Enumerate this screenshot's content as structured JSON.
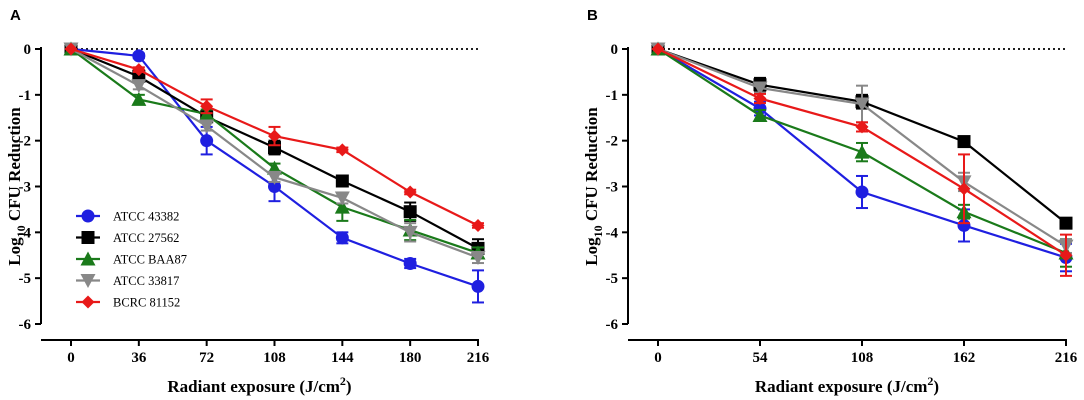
{
  "chart_data": [
    {
      "type": "line",
      "panel_label": "A",
      "xlabel_main": "Radiant exposure (J/cm",
      "xlabel_sup": "2",
      "xlabel_end": ")",
      "ylabel_pre": "Log",
      "ylabel_sub": "10",
      "ylabel_post": " CFU Reduction",
      "x": [
        0,
        36,
        72,
        108,
        144,
        180,
        216
      ],
      "xlim": [
        0,
        216
      ],
      "ylim": [
        -6,
        0
      ],
      "yticks": [
        0,
        -1,
        -2,
        -3,
        -4,
        -5,
        -6
      ],
      "ytick_labels": [
        "0",
        "-1",
        "-2",
        "-3",
        "-4",
        "-5",
        "-6"
      ],
      "xtick_labels": [
        "0",
        "36",
        "72",
        "108",
        "144",
        "180",
        "216"
      ],
      "reference_line": 0,
      "legend_position": "bottom-left",
      "series": [
        {
          "name": "ATCC 43382",
          "color": "#1f1fe0",
          "marker": "circle",
          "values": [
            0,
            -0.15,
            -2.0,
            -3.0,
            -4.12,
            -4.68,
            -5.18
          ],
          "errors": [
            0,
            0.05,
            0.3,
            0.32,
            0.12,
            0.1,
            0.35
          ]
        },
        {
          "name": "ATCC 27562",
          "color": "#000000",
          "marker": "square",
          "values": [
            0,
            -0.6,
            -1.48,
            -2.15,
            -2.88,
            -3.55,
            -4.35
          ],
          "errors": [
            0,
            0.08,
            0.1,
            0.15,
            0.05,
            0.2,
            0.2
          ]
        },
        {
          "name": "ATCC BAA87",
          "color": "#1a7a1a",
          "marker": "triangle-up",
          "values": [
            0,
            -1.1,
            -1.42,
            -2.6,
            -3.45,
            -3.95,
            -4.45
          ],
          "errors": [
            0,
            0.1,
            0.1,
            0.1,
            0.3,
            0.22,
            0.12
          ]
        },
        {
          "name": "ATCC 33817",
          "color": "#888888",
          "marker": "triangle-down",
          "values": [
            0,
            -0.8,
            -1.68,
            -2.8,
            -3.25,
            -4.0,
            -4.55
          ],
          "errors": [
            0,
            0.08,
            0.1,
            0.1,
            0.12,
            0.2,
            0.12
          ]
        },
        {
          "name": "BCRC 81152",
          "color": "#e81919",
          "marker": "diamond",
          "values": [
            0,
            -0.45,
            -1.25,
            -1.9,
            -2.2,
            -3.12,
            -3.85
          ],
          "errors": [
            0,
            0.05,
            0.15,
            0.2,
            0.05,
            0.05,
            0.05
          ]
        }
      ]
    },
    {
      "type": "line",
      "panel_label": "B",
      "xlabel_main": "Radiant exposure (J/cm",
      "xlabel_sup": "2",
      "xlabel_end": ")",
      "ylabel_pre": "Log",
      "ylabel_sub": "10",
      "ylabel_post": " CFU Reduction",
      "x": [
        0,
        54,
        108,
        162,
        216
      ],
      "xlim": [
        0,
        216
      ],
      "ylim": [
        -6,
        0
      ],
      "yticks": [
        0,
        -1,
        -2,
        -3,
        -4,
        -5,
        -6
      ],
      "ytick_labels": [
        "0",
        "-1",
        "-2",
        "-3",
        "-4",
        "-5",
        "-6"
      ],
      "xtick_labels": [
        "0",
        "54",
        "108",
        "162",
        "216"
      ],
      "reference_line": 0,
      "series": [
        {
          "name": "ATCC 43382",
          "color": "#1f1fe0",
          "marker": "circle",
          "values": [
            0,
            -1.3,
            -3.12,
            -3.85,
            -4.55
          ],
          "errors": [
            0,
            0.15,
            0.35,
            0.35,
            0.3
          ]
        },
        {
          "name": "ATCC 27562",
          "color": "#000000",
          "marker": "square",
          "values": [
            0,
            -0.78,
            -1.15,
            -2.02,
            -3.8
          ],
          "errors": [
            0,
            0.15,
            0.15,
            0.05,
            0.05
          ]
        },
        {
          "name": "ATCC BAA87",
          "color": "#1a7a1a",
          "marker": "triangle-up",
          "values": [
            0,
            -1.45,
            -2.25,
            -3.55,
            -4.45
          ],
          "errors": [
            0,
            0.12,
            0.2,
            0.15,
            0.3
          ]
        },
        {
          "name": "ATCC 33817",
          "color": "#888888",
          "marker": "triangle-down",
          "values": [
            0,
            -0.85,
            -1.2,
            -2.9,
            -4.3
          ],
          "errors": [
            0,
            0.1,
            0.4,
            0.2,
            0.15
          ]
        },
        {
          "name": "BCRC 81152",
          "color": "#e81919",
          "marker": "diamond",
          "values": [
            0,
            -1.08,
            -1.7,
            -3.05,
            -4.5
          ],
          "errors": [
            0,
            0.1,
            0.1,
            0.75,
            0.45
          ]
        }
      ]
    }
  ]
}
